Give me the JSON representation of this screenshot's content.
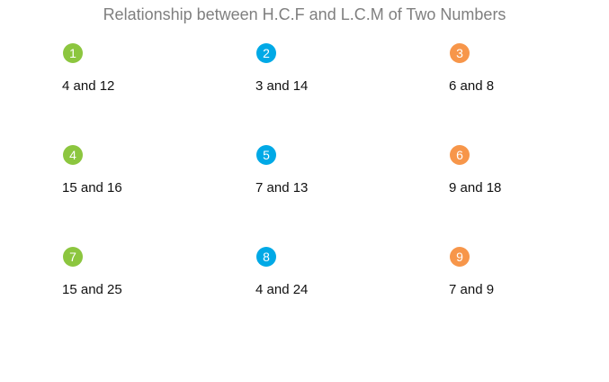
{
  "title": "Relationship between H.C.F and L.C.M of Two Numbers",
  "items": [
    {
      "number": "1",
      "label": "4 and 12"
    },
    {
      "number": "2",
      "label": "3 and 14"
    },
    {
      "number": "3",
      "label": "6 and 8"
    },
    {
      "number": "4",
      "label": "15 and 16"
    },
    {
      "number": "5",
      "label": "7 and 13"
    },
    {
      "number": "6",
      "label": "9 and 18"
    },
    {
      "number": "7",
      "label": "15 and 25"
    },
    {
      "number": "8",
      "label": "4 and 24"
    },
    {
      "number": "9",
      "label": "7 and 9"
    }
  ]
}
